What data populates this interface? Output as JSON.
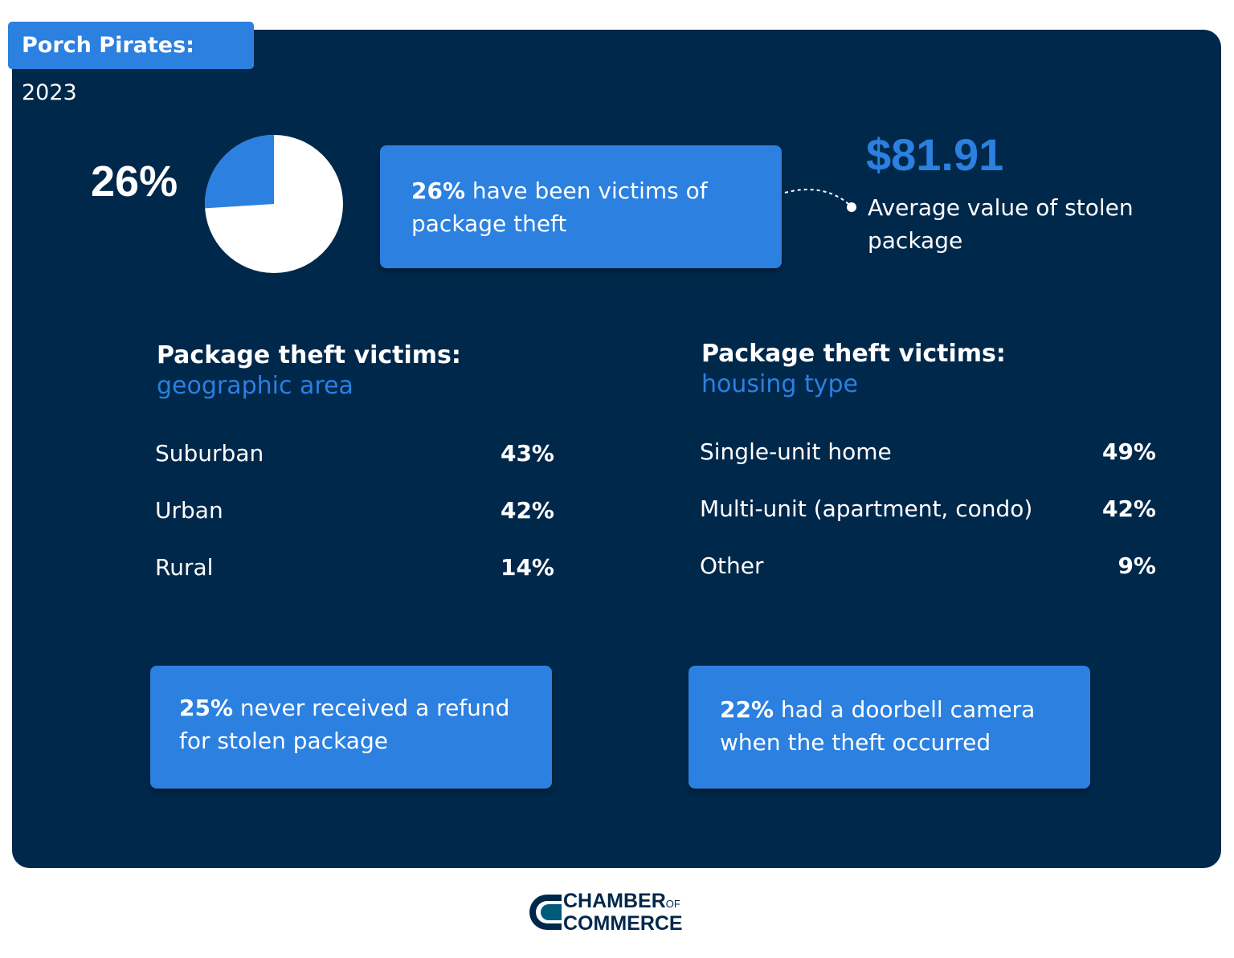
{
  "title": {
    "bold": "Porch Pirates:",
    "year": "2023"
  },
  "chart_data": {
    "type": "pie",
    "values": [
      26,
      74
    ],
    "colors": [
      "#2b80e0",
      "#ffffff"
    ],
    "label": "26%"
  },
  "callout_main": {
    "bold": "26%",
    "text": " have been victims of package theft"
  },
  "average": {
    "value": "$81.91",
    "label": "Average value of stolen package"
  },
  "geographic": {
    "heading": "Package theft victims:",
    "subheading": "geographic area",
    "rows": [
      {
        "label": "Suburban",
        "value": "43%"
      },
      {
        "label": "Urban",
        "value": "42%"
      },
      {
        "label": "Rural",
        "value": "14%"
      }
    ]
  },
  "housing": {
    "heading": "Package theft victims:",
    "subheading": "housing type",
    "rows": [
      {
        "label": "Single-unit home",
        "value": "49%"
      },
      {
        "label": "Multi-unit (apartment, condo)",
        "value": "42%"
      },
      {
        "label": "Other",
        "value": "9%"
      }
    ]
  },
  "refund": {
    "bold": "25%",
    "text": " never received a refund for stolen package"
  },
  "camera": {
    "bold": "22%",
    "text": " had a doorbell camera when the theft occurred"
  },
  "logo": {
    "line1": "CHAMBER",
    "of": "OF",
    "line2": "COMMERCE"
  },
  "colors": {
    "navy": "#00284b",
    "blue": "#2b80e0"
  }
}
